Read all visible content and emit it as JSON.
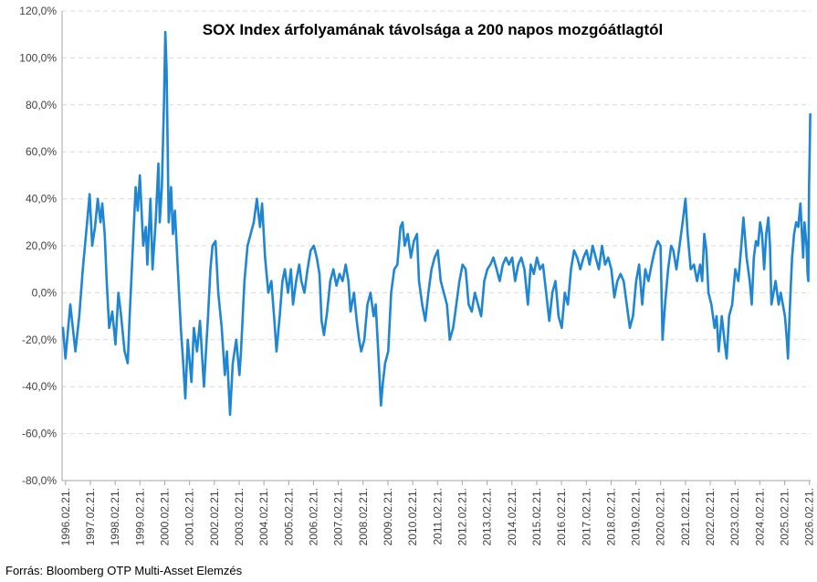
{
  "source_note": "Forrás: Bloomberg OTP Multi-Asset Elemzés",
  "colors": {
    "series": "#1f86d4",
    "grid": "#d9d9d9",
    "axis": "#a6a6a6",
    "text": "#404040"
  },
  "chart_data": {
    "type": "line",
    "title": "SOX Index árfolyamának távolsága a 200 napos mozgóátlagtól",
    "xlabel": "",
    "ylabel": "",
    "y_unit": "%",
    "ylim": [
      -80,
      120
    ],
    "y_ticks": [
      120,
      100,
      80,
      60,
      40,
      20,
      0,
      -20,
      -40,
      -60,
      -80
    ],
    "y_tick_labels": [
      "120,0%",
      "100,0%",
      "80,0%",
      "60,0%",
      "40,0%",
      "20,0%",
      "0,0%",
      "-20,0%",
      "-40,0%",
      "-60,0%",
      "-80,0%"
    ],
    "gridlines": "horizontal dashed",
    "legend": "none",
    "x_tick_labels": [
      "1996.02.21.",
      "1997.02.21.",
      "1998.02.21.",
      "1999.02.21.",
      "2000.02.21.",
      "2001.02.21.",
      "2002.02.21.",
      "2003.02.21.",
      "2004.02.21.",
      "2005.02.21.",
      "2006.02.21.",
      "2007.02.21.",
      "2008.02.21.",
      "2009.02.21.",
      "2010.02.21.",
      "2011.02.21.",
      "2012.02.21.",
      "2013.02.21.",
      "2014.02.21.",
      "2015.02.21.",
      "2016.02.21.",
      "2017.02.21.",
      "2018.02.21.",
      "2019.02.21.",
      "2020.02.21.",
      "2021.02.21.",
      "2022.02.21.",
      "2023.02.21.",
      "2024.02.21.",
      "2025.02.21.",
      "2026.02.21."
    ],
    "series": [
      {
        "points": [
          [
            "1996-01-15",
            -15
          ],
          [
            "1996-02-20",
            -28
          ],
          [
            "1996-05-01",
            -5
          ],
          [
            "1996-07-15",
            -25
          ],
          [
            "1996-09-10",
            -10
          ],
          [
            "1996-11-01",
            10
          ],
          [
            "1997-01-10",
            32
          ],
          [
            "1997-02-10",
            42
          ],
          [
            "1997-03-20",
            20
          ],
          [
            "1997-05-01",
            28
          ],
          [
            "1997-06-10",
            40
          ],
          [
            "1997-07-20",
            30
          ],
          [
            "1997-08-15",
            38
          ],
          [
            "1997-09-20",
            25
          ],
          [
            "1997-10-20",
            5
          ],
          [
            "1997-11-25",
            -15
          ],
          [
            "1998-01-10",
            -8
          ],
          [
            "1998-02-25",
            -22
          ],
          [
            "1998-04-10",
            0
          ],
          [
            "1998-05-20",
            -10
          ],
          [
            "1998-07-10",
            -25
          ],
          [
            "1998-08-25",
            -30
          ],
          [
            "1998-09-20",
            -12
          ],
          [
            "1998-11-10",
            20
          ],
          [
            "1998-12-20",
            45
          ],
          [
            "1999-01-20",
            35
          ],
          [
            "1999-02-20",
            50
          ],
          [
            "1999-04-10",
            20
          ],
          [
            "1999-05-20",
            28
          ],
          [
            "1999-06-10",
            12
          ],
          [
            "1999-07-25",
            40
          ],
          [
            "1999-08-25",
            10
          ],
          [
            "1999-10-10",
            30
          ],
          [
            "1999-11-20",
            55
          ],
          [
            "1999-12-10",
            30
          ],
          [
            "2000-01-10",
            45
          ],
          [
            "2000-02-10",
            80
          ],
          [
            "2000-03-01",
            111
          ],
          [
            "2000-03-20",
            95
          ],
          [
            "2000-04-20",
            30
          ],
          [
            "2000-05-25",
            45
          ],
          [
            "2000-06-20",
            25
          ],
          [
            "2000-07-20",
            35
          ],
          [
            "2000-09-01",
            10
          ],
          [
            "2000-10-15",
            -15
          ],
          [
            "2000-11-20",
            -30
          ],
          [
            "2000-12-20",
            -45
          ],
          [
            "2001-01-25",
            -20
          ],
          [
            "2001-03-20",
            -38
          ],
          [
            "2001-04-25",
            -15
          ],
          [
            "2001-06-10",
            -25
          ],
          [
            "2001-07-25",
            -12
          ],
          [
            "2001-09-20",
            -40
          ],
          [
            "2001-11-20",
            -10
          ],
          [
            "2001-12-25",
            10
          ],
          [
            "2002-01-25",
            20
          ],
          [
            "2002-03-10",
            22
          ],
          [
            "2002-04-20",
            0
          ],
          [
            "2002-06-10",
            -15
          ],
          [
            "2002-07-25",
            -35
          ],
          [
            "2002-08-25",
            -25
          ],
          [
            "2002-10-10",
            -52
          ],
          [
            "2002-11-20",
            -30
          ],
          [
            "2003-01-10",
            -20
          ],
          [
            "2003-02-25",
            -35
          ],
          [
            "2003-03-20",
            -25
          ],
          [
            "2003-05-10",
            5
          ],
          [
            "2003-06-25",
            20
          ],
          [
            "2003-08-10",
            25
          ],
          [
            "2003-09-25",
            30
          ],
          [
            "2003-11-10",
            40
          ],
          [
            "2003-12-25",
            28
          ],
          [
            "2004-01-25",
            38
          ],
          [
            "2004-03-10",
            15
          ],
          [
            "2004-04-25",
            0
          ],
          [
            "2004-06-10",
            5
          ],
          [
            "2004-07-25",
            -12
          ],
          [
            "2004-08-25",
            -25
          ],
          [
            "2004-10-10",
            -10
          ],
          [
            "2004-11-20",
            5
          ],
          [
            "2004-12-25",
            10
          ],
          [
            "2005-02-10",
            0
          ],
          [
            "2005-03-25",
            10
          ],
          [
            "2005-04-25",
            -5
          ],
          [
            "2005-06-10",
            5
          ],
          [
            "2005-07-25",
            12
          ],
          [
            "2005-08-25",
            5
          ],
          [
            "2005-10-10",
            0
          ],
          [
            "2005-11-25",
            10
          ],
          [
            "2006-01-10",
            18
          ],
          [
            "2006-02-25",
            20
          ],
          [
            "2006-04-10",
            15
          ],
          [
            "2006-05-20",
            8
          ],
          [
            "2006-06-20",
            -12
          ],
          [
            "2006-07-25",
            -18
          ],
          [
            "2006-09-10",
            -8
          ],
          [
            "2006-10-25",
            5
          ],
          [
            "2006-12-10",
            10
          ],
          [
            "2007-01-25",
            3
          ],
          [
            "2007-03-10",
            8
          ],
          [
            "2007-04-25",
            5
          ],
          [
            "2007-06-10",
            12
          ],
          [
            "2007-07-20",
            5
          ],
          [
            "2007-08-20",
            -8
          ],
          [
            "2007-10-10",
            0
          ],
          [
            "2007-11-20",
            -12
          ],
          [
            "2007-12-25",
            -20
          ],
          [
            "2008-01-25",
            -25
          ],
          [
            "2008-03-10",
            -20
          ],
          [
            "2008-04-25",
            -5
          ],
          [
            "2008-06-10",
            0
          ],
          [
            "2008-07-25",
            -10
          ],
          [
            "2008-08-25",
            -5
          ],
          [
            "2008-10-10",
            -30
          ],
          [
            "2008-11-10",
            -48
          ],
          [
            "2008-12-10",
            -38
          ],
          [
            "2009-01-10",
            -30
          ],
          [
            "2009-02-25",
            -25
          ],
          [
            "2009-04-10",
            0
          ],
          [
            "2009-05-25",
            10
          ],
          [
            "2009-07-10",
            12
          ],
          [
            "2009-08-25",
            28
          ],
          [
            "2009-09-25",
            30
          ],
          [
            "2009-10-25",
            20
          ],
          [
            "2009-12-10",
            25
          ],
          [
            "2010-01-25",
            15
          ],
          [
            "2010-03-10",
            22
          ],
          [
            "2010-04-25",
            25
          ],
          [
            "2010-05-25",
            5
          ],
          [
            "2010-07-10",
            -5
          ],
          [
            "2010-08-25",
            -12
          ],
          [
            "2010-10-10",
            0
          ],
          [
            "2010-11-25",
            10
          ],
          [
            "2011-01-10",
            15
          ],
          [
            "2011-02-25",
            18
          ],
          [
            "2011-04-10",
            5
          ],
          [
            "2011-05-25",
            0
          ],
          [
            "2011-07-10",
            -5
          ],
          [
            "2011-08-20",
            -20
          ],
          [
            "2011-10-10",
            -15
          ],
          [
            "2011-11-25",
            -5
          ],
          [
            "2012-01-10",
            5
          ],
          [
            "2012-02-25",
            12
          ],
          [
            "2012-04-10",
            10
          ],
          [
            "2012-05-25",
            -5
          ],
          [
            "2012-07-10",
            -8
          ],
          [
            "2012-08-25",
            0
          ],
          [
            "2012-10-10",
            -5
          ],
          [
            "2012-11-25",
            -10
          ],
          [
            "2013-01-10",
            5
          ],
          [
            "2013-02-25",
            10
          ],
          [
            "2013-04-10",
            12
          ],
          [
            "2013-05-25",
            15
          ],
          [
            "2013-07-10",
            10
          ],
          [
            "2013-08-25",
            5
          ],
          [
            "2013-10-10",
            12
          ],
          [
            "2013-11-25",
            15
          ],
          [
            "2014-01-10",
            12
          ],
          [
            "2014-02-25",
            15
          ],
          [
            "2014-04-10",
            5
          ],
          [
            "2014-05-25",
            12
          ],
          [
            "2014-07-10",
            15
          ],
          [
            "2014-08-25",
            10
          ],
          [
            "2014-10-15",
            -5
          ],
          [
            "2014-11-25",
            12
          ],
          [
            "2015-01-10",
            8
          ],
          [
            "2015-02-25",
            15
          ],
          [
            "2015-04-10",
            10
          ],
          [
            "2015-05-25",
            12
          ],
          [
            "2015-07-10",
            0
          ],
          [
            "2015-08-25",
            -12
          ],
          [
            "2015-10-10",
            0
          ],
          [
            "2015-11-25",
            5
          ],
          [
            "2016-01-10",
            -10
          ],
          [
            "2016-02-25",
            -15
          ],
          [
            "2016-04-10",
            0
          ],
          [
            "2016-05-25",
            -5
          ],
          [
            "2016-07-10",
            10
          ],
          [
            "2016-08-25",
            18
          ],
          [
            "2016-10-10",
            15
          ],
          [
            "2016-11-25",
            10
          ],
          [
            "2017-01-10",
            15
          ],
          [
            "2017-02-25",
            18
          ],
          [
            "2017-04-10",
            12
          ],
          [
            "2017-05-25",
            20
          ],
          [
            "2017-07-10",
            15
          ],
          [
            "2017-08-25",
            10
          ],
          [
            "2017-10-10",
            20
          ],
          [
            "2017-11-25",
            12
          ],
          [
            "2018-01-10",
            15
          ],
          [
            "2018-02-25",
            10
          ],
          [
            "2018-04-10",
            -2
          ],
          [
            "2018-05-25",
            5
          ],
          [
            "2018-07-10",
            8
          ],
          [
            "2018-08-25",
            5
          ],
          [
            "2018-10-10",
            -5
          ],
          [
            "2018-11-25",
            -15
          ],
          [
            "2019-01-10",
            -10
          ],
          [
            "2019-02-25",
            5
          ],
          [
            "2019-04-10",
            12
          ],
          [
            "2019-05-25",
            -5
          ],
          [
            "2019-07-10",
            10
          ],
          [
            "2019-08-25",
            5
          ],
          [
            "2019-10-10",
            12
          ],
          [
            "2019-11-25",
            18
          ],
          [
            "2020-01-10",
            22
          ],
          [
            "2020-02-20",
            20
          ],
          [
            "2020-03-20",
            -20
          ],
          [
            "2020-04-25",
            -5
          ],
          [
            "2020-06-10",
            10
          ],
          [
            "2020-07-25",
            20
          ],
          [
            "2020-08-25",
            18
          ],
          [
            "2020-10-10",
            10
          ],
          [
            "2020-11-25",
            20
          ],
          [
            "2021-01-10",
            30
          ],
          [
            "2021-02-20",
            40
          ],
          [
            "2021-03-25",
            25
          ],
          [
            "2021-05-10",
            10
          ],
          [
            "2021-06-25",
            12
          ],
          [
            "2021-08-10",
            5
          ],
          [
            "2021-09-25",
            12
          ],
          [
            "2021-10-25",
            5
          ],
          [
            "2021-11-25",
            25
          ],
          [
            "2021-12-25",
            18
          ],
          [
            "2022-01-25",
            0
          ],
          [
            "2022-03-10",
            -5
          ],
          [
            "2022-04-25",
            -15
          ],
          [
            "2022-05-25",
            -10
          ],
          [
            "2022-06-25",
            -25
          ],
          [
            "2022-08-10",
            -10
          ],
          [
            "2022-09-25",
            -22
          ],
          [
            "2022-10-20",
            -28
          ],
          [
            "2022-11-25",
            -10
          ],
          [
            "2023-01-10",
            -5
          ],
          [
            "2023-02-25",
            10
          ],
          [
            "2023-04-10",
            5
          ],
          [
            "2023-05-25",
            20
          ],
          [
            "2023-06-25",
            32
          ],
          [
            "2023-08-10",
            15
          ],
          [
            "2023-09-25",
            5
          ],
          [
            "2023-10-25",
            -5
          ],
          [
            "2023-11-25",
            15
          ],
          [
            "2023-12-25",
            22
          ],
          [
            "2024-01-25",
            20
          ],
          [
            "2024-02-25",
            30
          ],
          [
            "2024-03-25",
            25
          ],
          [
            "2024-04-25",
            10
          ],
          [
            "2024-05-25",
            25
          ],
          [
            "2024-06-25",
            32
          ],
          [
            "2024-07-20",
            20
          ],
          [
            "2024-08-10",
            -5
          ],
          [
            "2024-09-10",
            0
          ],
          [
            "2024-10-10",
            5
          ],
          [
            "2024-11-25",
            -5
          ],
          [
            "2024-12-25",
            0
          ],
          [
            "2025-01-25",
            -5
          ],
          [
            "2025-02-25",
            -10
          ],
          [
            "2025-03-25",
            -20
          ],
          [
            "2025-04-10",
            -28
          ],
          [
            "2025-05-10",
            -5
          ],
          [
            "2025-06-10",
            15
          ],
          [
            "2025-07-10",
            25
          ],
          [
            "2025-08-10",
            30
          ],
          [
            "2025-09-10",
            28
          ],
          [
            "2025-10-10",
            38
          ],
          [
            "2025-10-25",
            30
          ],
          [
            "2025-11-20",
            15
          ],
          [
            "2025-12-10",
            30
          ],
          [
            "2025-12-25",
            25
          ],
          [
            "2026-01-10",
            20
          ],
          [
            "2026-01-25",
            8
          ],
          [
            "2026-02-05",
            5
          ],
          [
            "2026-02-15",
            45
          ],
          [
            "2026-02-25",
            60
          ],
          [
            "2026-03-05",
            76
          ]
        ]
      }
    ]
  }
}
